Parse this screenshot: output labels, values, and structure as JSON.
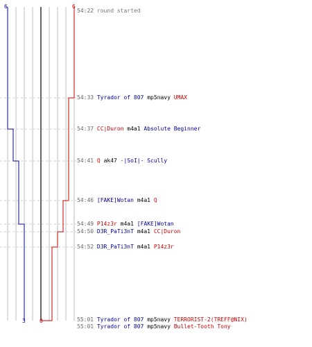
{
  "colors": {
    "red": "#cc0000",
    "blue": "#000099",
    "grid": "#bbbbbb",
    "center": "#666666",
    "dash": "#cccccc"
  },
  "scores": {
    "blue_start": "6",
    "red_start": "6",
    "blue_end": "3",
    "red_end": "0"
  },
  "events": [
    {
      "time": "54:22",
      "desc": "round started"
    },
    {
      "time": "54:33",
      "killer": "Tyrador of 807",
      "killer_team": "blue",
      "weapon": "mp5navy",
      "victim": "UMAX",
      "victim_team": "red"
    },
    {
      "time": "54:37",
      "killer": "CC|Duron",
      "killer_team": "red",
      "weapon": "m4a1",
      "victim": "Absolute Beginner",
      "victim_team": "blue"
    },
    {
      "time": "54:41",
      "killer": "Q",
      "killer_team": "red",
      "weapon": "ak47",
      "victim": "-|SoI|- Scully",
      "victim_team": "blue"
    },
    {
      "time": "54:46",
      "killer": "[FAKE]Wotan",
      "killer_team": "blue",
      "weapon": "m4a1",
      "victim": "Q",
      "victim_team": "red"
    },
    {
      "time": "54:49",
      "killer": "P14z3r",
      "killer_team": "red",
      "weapon": "m4a1",
      "victim": "[FAKE]Wotan",
      "victim_team": "blue"
    },
    {
      "time": "54:50",
      "killer": "D3R_PaTi3nT",
      "killer_team": "blue",
      "weapon": "m4a1",
      "victim": "CC|Duron",
      "victim_team": "red"
    },
    {
      "time": "54:52",
      "killer": "D3R_PaTi3nT",
      "killer_team": "blue",
      "weapon": "m4a1",
      "victim": "P14z3r",
      "victim_team": "red"
    },
    {
      "time": "55:01",
      "killer": "Tyrador of 807",
      "killer_team": "blue",
      "weapon": "mp5navy",
      "victim": "TERRORIST-2(TREFF@NIX)",
      "victim_team": "red"
    },
    {
      "time": "55:01",
      "killer": "Tyrador of 807",
      "killer_team": "blue",
      "weapon": "mp5navy",
      "victim": "Bullet-Tooth Tony",
      "victim_team": "red"
    }
  ]
}
